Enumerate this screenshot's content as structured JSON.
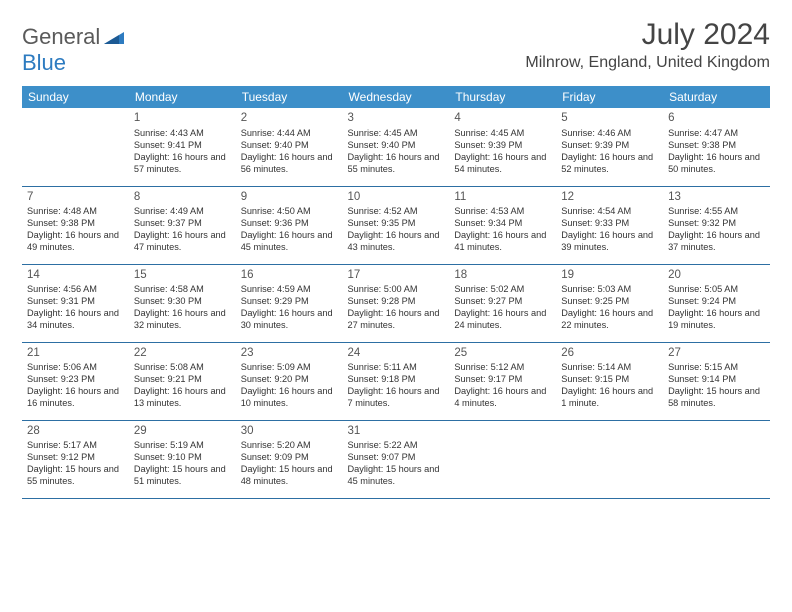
{
  "brand": {
    "part1": "General",
    "part2": "Blue"
  },
  "title": "July 2024",
  "location": "Milnrow, England, United Kingdom",
  "colors": {
    "header_bg": "#3d8fc9",
    "header_text": "#ffffff",
    "row_border": "#2d6fa3",
    "logo_gray": "#5a5a5a",
    "logo_blue": "#2d7bc0",
    "tri_fill": "#2d7bc0"
  },
  "day_headers": [
    "Sunday",
    "Monday",
    "Tuesday",
    "Wednesday",
    "Thursday",
    "Friday",
    "Saturday"
  ],
  "weeks": [
    [
      null,
      {
        "n": "1",
        "sr": "Sunrise: 4:43 AM",
        "ss": "Sunset: 9:41 PM",
        "dl": "Daylight: 16 hours and 57 minutes."
      },
      {
        "n": "2",
        "sr": "Sunrise: 4:44 AM",
        "ss": "Sunset: 9:40 PM",
        "dl": "Daylight: 16 hours and 56 minutes."
      },
      {
        "n": "3",
        "sr": "Sunrise: 4:45 AM",
        "ss": "Sunset: 9:40 PM",
        "dl": "Daylight: 16 hours and 55 minutes."
      },
      {
        "n": "4",
        "sr": "Sunrise: 4:45 AM",
        "ss": "Sunset: 9:39 PM",
        "dl": "Daylight: 16 hours and 54 minutes."
      },
      {
        "n": "5",
        "sr": "Sunrise: 4:46 AM",
        "ss": "Sunset: 9:39 PM",
        "dl": "Daylight: 16 hours and 52 minutes."
      },
      {
        "n": "6",
        "sr": "Sunrise: 4:47 AM",
        "ss": "Sunset: 9:38 PM",
        "dl": "Daylight: 16 hours and 50 minutes."
      }
    ],
    [
      {
        "n": "7",
        "sr": "Sunrise: 4:48 AM",
        "ss": "Sunset: 9:38 PM",
        "dl": "Daylight: 16 hours and 49 minutes."
      },
      {
        "n": "8",
        "sr": "Sunrise: 4:49 AM",
        "ss": "Sunset: 9:37 PM",
        "dl": "Daylight: 16 hours and 47 minutes."
      },
      {
        "n": "9",
        "sr": "Sunrise: 4:50 AM",
        "ss": "Sunset: 9:36 PM",
        "dl": "Daylight: 16 hours and 45 minutes."
      },
      {
        "n": "10",
        "sr": "Sunrise: 4:52 AM",
        "ss": "Sunset: 9:35 PM",
        "dl": "Daylight: 16 hours and 43 minutes."
      },
      {
        "n": "11",
        "sr": "Sunrise: 4:53 AM",
        "ss": "Sunset: 9:34 PM",
        "dl": "Daylight: 16 hours and 41 minutes."
      },
      {
        "n": "12",
        "sr": "Sunrise: 4:54 AM",
        "ss": "Sunset: 9:33 PM",
        "dl": "Daylight: 16 hours and 39 minutes."
      },
      {
        "n": "13",
        "sr": "Sunrise: 4:55 AM",
        "ss": "Sunset: 9:32 PM",
        "dl": "Daylight: 16 hours and 37 minutes."
      }
    ],
    [
      {
        "n": "14",
        "sr": "Sunrise: 4:56 AM",
        "ss": "Sunset: 9:31 PM",
        "dl": "Daylight: 16 hours and 34 minutes."
      },
      {
        "n": "15",
        "sr": "Sunrise: 4:58 AM",
        "ss": "Sunset: 9:30 PM",
        "dl": "Daylight: 16 hours and 32 minutes."
      },
      {
        "n": "16",
        "sr": "Sunrise: 4:59 AM",
        "ss": "Sunset: 9:29 PM",
        "dl": "Daylight: 16 hours and 30 minutes."
      },
      {
        "n": "17",
        "sr": "Sunrise: 5:00 AM",
        "ss": "Sunset: 9:28 PM",
        "dl": "Daylight: 16 hours and 27 minutes."
      },
      {
        "n": "18",
        "sr": "Sunrise: 5:02 AM",
        "ss": "Sunset: 9:27 PM",
        "dl": "Daylight: 16 hours and 24 minutes."
      },
      {
        "n": "19",
        "sr": "Sunrise: 5:03 AM",
        "ss": "Sunset: 9:25 PM",
        "dl": "Daylight: 16 hours and 22 minutes."
      },
      {
        "n": "20",
        "sr": "Sunrise: 5:05 AM",
        "ss": "Sunset: 9:24 PM",
        "dl": "Daylight: 16 hours and 19 minutes."
      }
    ],
    [
      {
        "n": "21",
        "sr": "Sunrise: 5:06 AM",
        "ss": "Sunset: 9:23 PM",
        "dl": "Daylight: 16 hours and 16 minutes."
      },
      {
        "n": "22",
        "sr": "Sunrise: 5:08 AM",
        "ss": "Sunset: 9:21 PM",
        "dl": "Daylight: 16 hours and 13 minutes."
      },
      {
        "n": "23",
        "sr": "Sunrise: 5:09 AM",
        "ss": "Sunset: 9:20 PM",
        "dl": "Daylight: 16 hours and 10 minutes."
      },
      {
        "n": "24",
        "sr": "Sunrise: 5:11 AM",
        "ss": "Sunset: 9:18 PM",
        "dl": "Daylight: 16 hours and 7 minutes."
      },
      {
        "n": "25",
        "sr": "Sunrise: 5:12 AM",
        "ss": "Sunset: 9:17 PM",
        "dl": "Daylight: 16 hours and 4 minutes."
      },
      {
        "n": "26",
        "sr": "Sunrise: 5:14 AM",
        "ss": "Sunset: 9:15 PM",
        "dl": "Daylight: 16 hours and 1 minute."
      },
      {
        "n": "27",
        "sr": "Sunrise: 5:15 AM",
        "ss": "Sunset: 9:14 PM",
        "dl": "Daylight: 15 hours and 58 minutes."
      }
    ],
    [
      {
        "n": "28",
        "sr": "Sunrise: 5:17 AM",
        "ss": "Sunset: 9:12 PM",
        "dl": "Daylight: 15 hours and 55 minutes."
      },
      {
        "n": "29",
        "sr": "Sunrise: 5:19 AM",
        "ss": "Sunset: 9:10 PM",
        "dl": "Daylight: 15 hours and 51 minutes."
      },
      {
        "n": "30",
        "sr": "Sunrise: 5:20 AM",
        "ss": "Sunset: 9:09 PM",
        "dl": "Daylight: 15 hours and 48 minutes."
      },
      {
        "n": "31",
        "sr": "Sunrise: 5:22 AM",
        "ss": "Sunset: 9:07 PM",
        "dl": "Daylight: 15 hours and 45 minutes."
      },
      null,
      null,
      null
    ]
  ]
}
